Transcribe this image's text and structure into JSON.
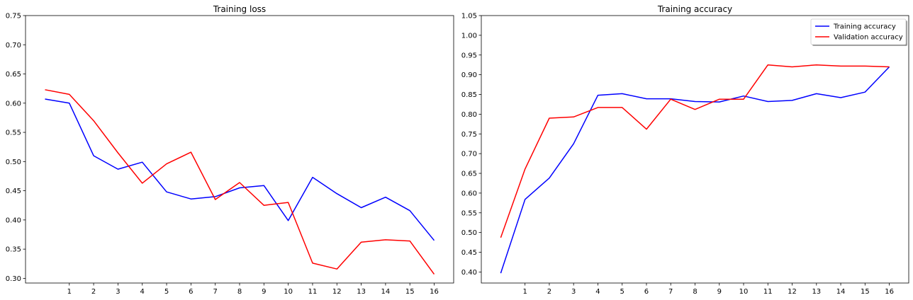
{
  "chart_data": [
    {
      "type": "line",
      "title": "Training loss",
      "xlabel": "",
      "ylabel": "",
      "x_ticks": [
        1,
        2,
        3,
        4,
        5,
        6,
        7,
        8,
        9,
        10,
        11,
        12,
        13,
        14,
        15,
        16
      ],
      "y_ticks": [
        0.3,
        0.35,
        0.4,
        0.45,
        0.5,
        0.55,
        0.6,
        0.65,
        0.7,
        0.75
      ],
      "xlim": [
        -0.8,
        16.8
      ],
      "ylim": [
        0.292,
        0.75
      ],
      "grid": false,
      "legend": null,
      "series": [
        {
          "color": "#0000ff",
          "x": [
            0,
            1,
            2,
            3,
            4,
            5,
            6,
            7,
            8,
            9,
            10,
            11,
            12,
            13,
            14,
            15,
            16
          ],
          "values": [
            0.607,
            0.6,
            0.51,
            0.487,
            0.499,
            0.448,
            0.436,
            0.44,
            0.455,
            0.459,
            0.399,
            0.473,
            0.445,
            0.421,
            0.439,
            0.416,
            0.365
          ]
        },
        {
          "color": "#ff0000",
          "x": [
            0,
            1,
            2,
            3,
            4,
            5,
            6,
            7,
            8,
            9,
            10,
            11,
            12,
            13,
            14,
            15,
            16
          ],
          "values": [
            0.623,
            0.615,
            0.57,
            0.515,
            0.463,
            0.496,
            0.516,
            0.435,
            0.464,
            0.425,
            0.43,
            0.326,
            0.316,
            0.362,
            0.366,
            0.364,
            0.307
          ]
        }
      ]
    },
    {
      "type": "line",
      "title": "Training accuracy",
      "xlabel": "",
      "ylabel": "",
      "x_ticks": [
        1,
        2,
        3,
        4,
        5,
        6,
        7,
        8,
        9,
        10,
        11,
        12,
        13,
        14,
        15,
        16
      ],
      "y_ticks": [
        0.4,
        0.45,
        0.5,
        0.55,
        0.6,
        0.65,
        0.7,
        0.75,
        0.8,
        0.85,
        0.9,
        0.95,
        1.0,
        1.05
      ],
      "xlim": [
        -0.8,
        16.8
      ],
      "ylim": [
        0.372,
        1.05
      ],
      "grid": false,
      "legend": "top-right",
      "series": [
        {
          "name": "Training accuracy",
          "color": "#0000ff",
          "x": [
            0,
            1,
            2,
            3,
            4,
            5,
            6,
            7,
            8,
            9,
            10,
            11,
            12,
            13,
            14,
            15,
            16
          ],
          "values": [
            0.397,
            0.584,
            0.638,
            0.725,
            0.848,
            0.852,
            0.839,
            0.839,
            0.832,
            0.831,
            0.846,
            0.832,
            0.835,
            0.852,
            0.842,
            0.856,
            0.92
          ]
        },
        {
          "name": "Validation accuracy",
          "color": "#ff0000",
          "x": [
            0,
            1,
            2,
            3,
            4,
            5,
            6,
            7,
            8,
            9,
            10,
            11,
            12,
            13,
            14,
            15,
            16
          ],
          "values": [
            0.487,
            0.661,
            0.79,
            0.793,
            0.817,
            0.817,
            0.762,
            0.838,
            0.812,
            0.838,
            0.838,
            0.925,
            0.92,
            0.925,
            0.922,
            0.922,
            0.92
          ]
        }
      ]
    }
  ]
}
